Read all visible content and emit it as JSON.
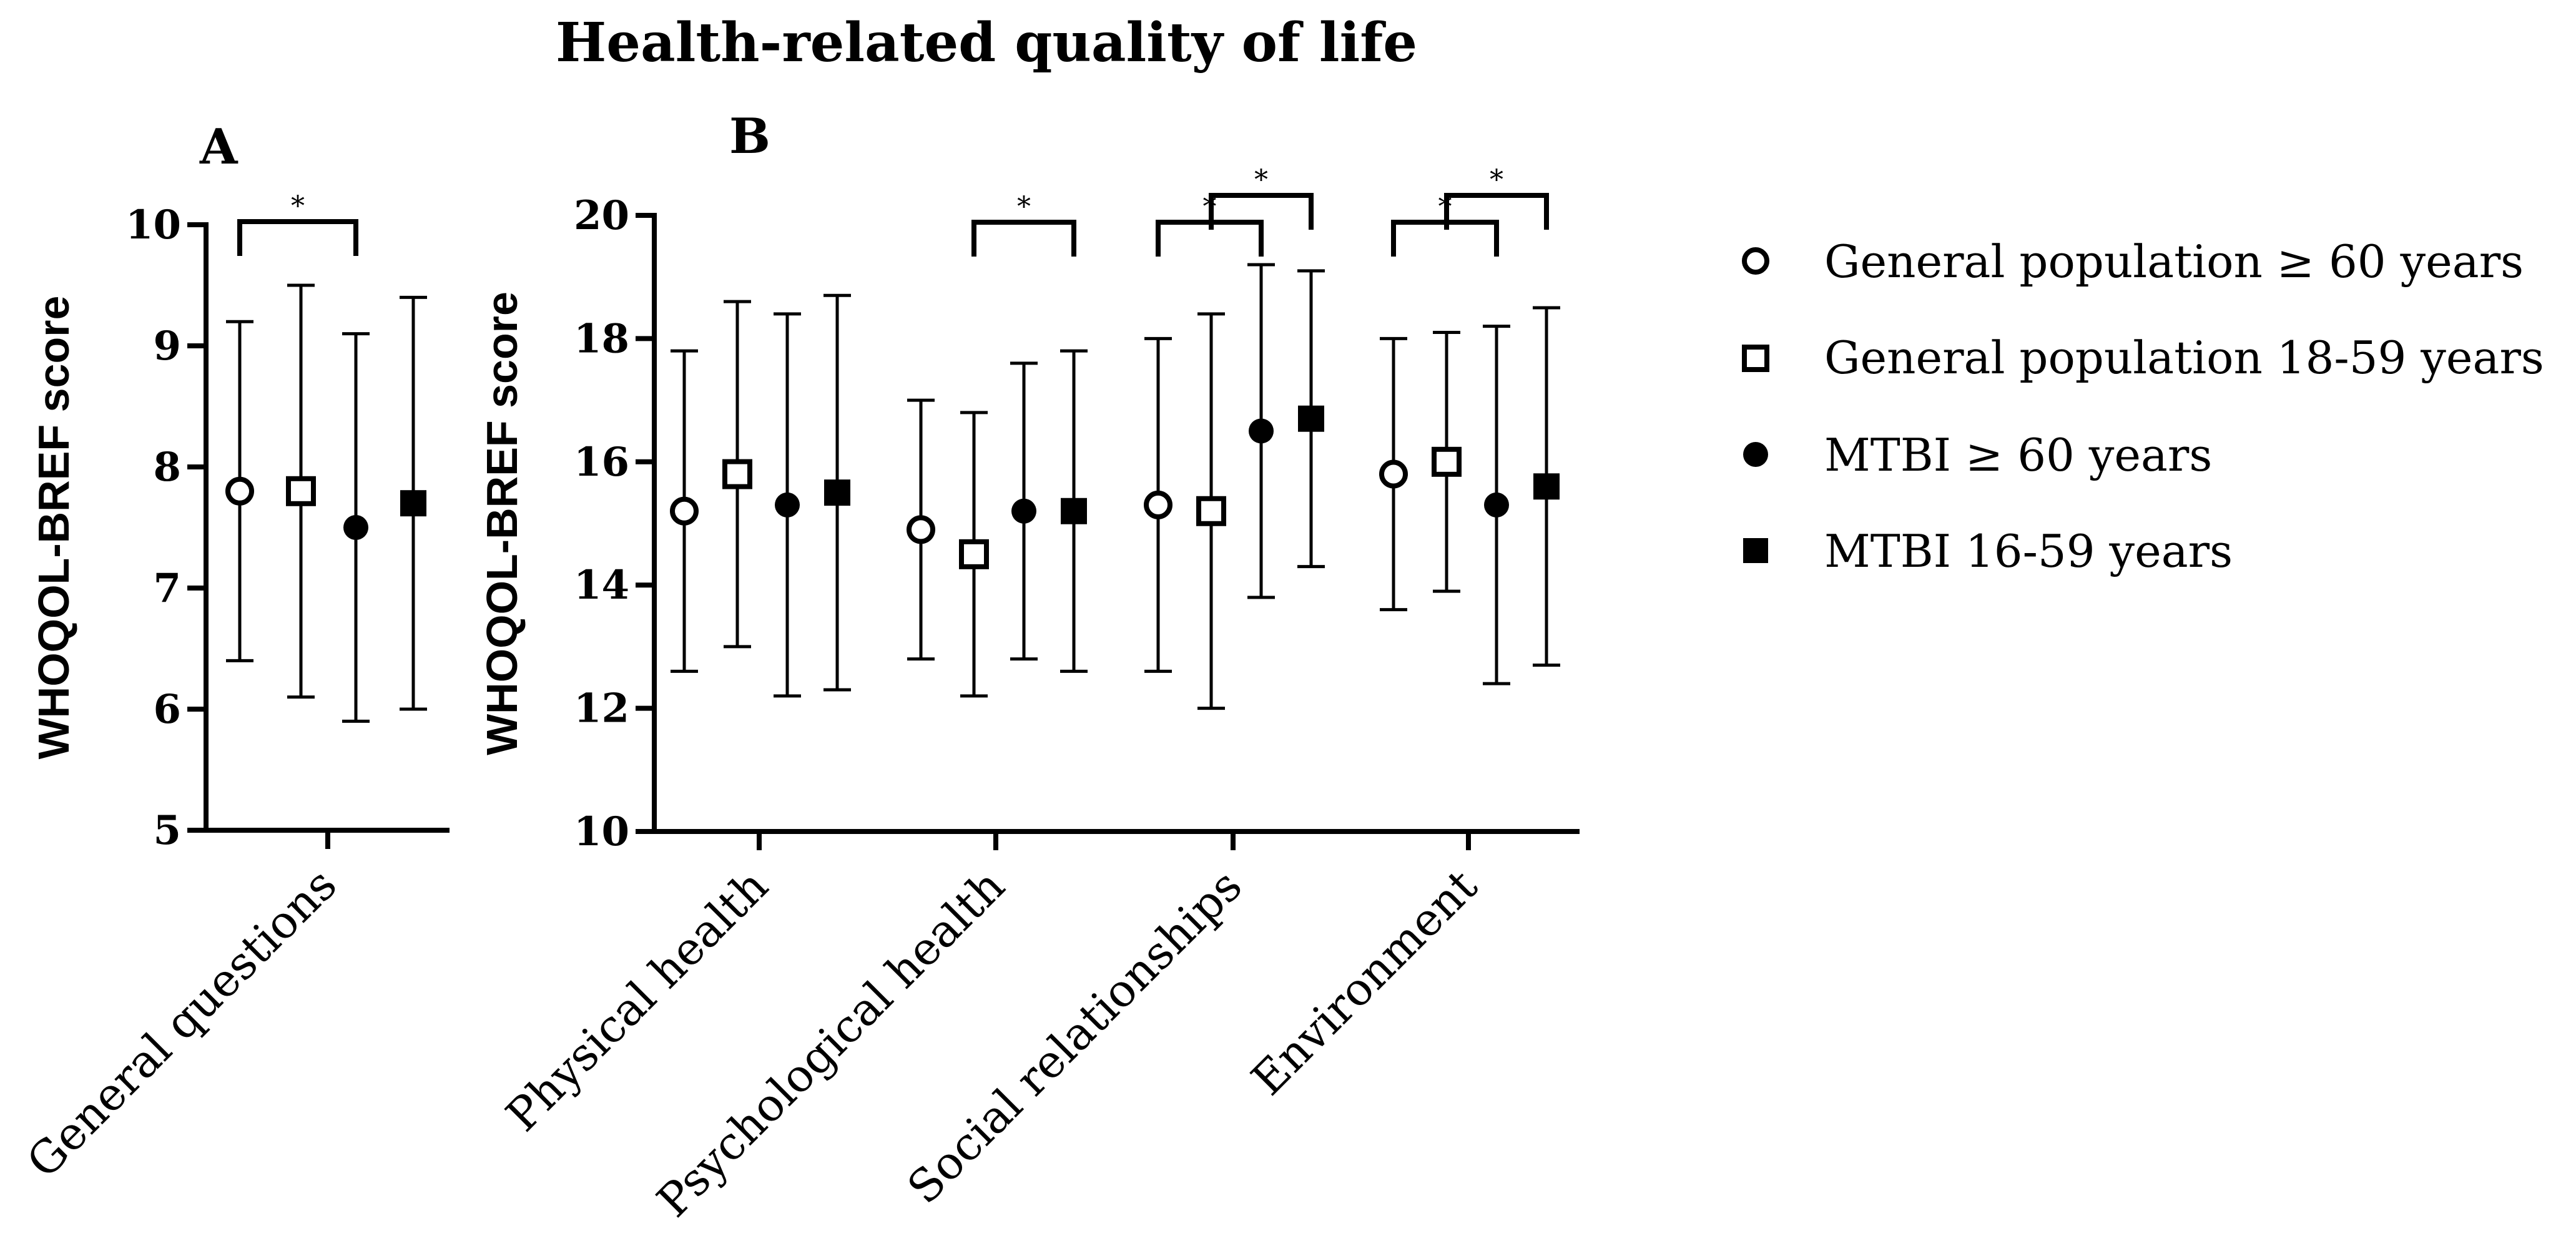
{
  "title": "Health-related quality of life",
  "legend": {
    "position": "right",
    "items": [
      {
        "label": "General population ≥ 60 years",
        "marker": "open-circle"
      },
      {
        "label": "General population 18-59 years",
        "marker": "open-square"
      },
      {
        "label": "MTBI ≥ 60 years",
        "marker": "filled-circle"
      },
      {
        "label": "MTBI 16-59 years",
        "marker": "filled-square"
      }
    ]
  },
  "chart_data": [
    {
      "panel": "A",
      "type": "scatter",
      "subtype": "mean with error bars",
      "ylabel": "WHOQOL-BREF score",
      "ylim": [
        5,
        10
      ],
      "yticks": [
        "5",
        "6",
        "7",
        "8",
        "9",
        "10"
      ],
      "categories": [
        "General questions"
      ],
      "series": [
        {
          "name": "General population ≥ 60 years",
          "mean": [
            7.8
          ],
          "lower": [
            6.4
          ],
          "upper": [
            9.2
          ]
        },
        {
          "name": "General population 18-59 years",
          "mean": [
            7.8
          ],
          "lower": [
            6.1
          ],
          "upper": [
            9.5
          ]
        },
        {
          "name": "MTBI ≥ 60 years",
          "mean": [
            7.5
          ],
          "lower": [
            5.9
          ],
          "upper": [
            9.1
          ]
        },
        {
          "name": "MTBI 16-59 years",
          "mean": [
            7.7
          ],
          "lower": [
            6.0
          ],
          "upper": [
            9.4
          ]
        }
      ],
      "significance": [
        {
          "category": 0,
          "from_series": 0,
          "to_series": 2,
          "level": 0,
          "label": "*"
        }
      ]
    },
    {
      "panel": "B",
      "type": "scatter",
      "subtype": "mean with error bars",
      "ylabel": "WHOQOL-BREF score",
      "ylim": [
        10,
        20
      ],
      "yticks": [
        "10",
        "12",
        "14",
        "16",
        "18",
        "20"
      ],
      "categories": [
        "Physical health",
        "Psychological health",
        "Social relationships",
        "Environment"
      ],
      "series": [
        {
          "name": "General population ≥ 60 years",
          "mean": [
            15.2,
            14.9,
            15.3,
            15.8
          ],
          "lower": [
            12.6,
            12.8,
            12.6,
            13.6
          ],
          "upper": [
            17.8,
            17.0,
            18.0,
            18.0
          ]
        },
        {
          "name": "General population 18-59 years",
          "mean": [
            15.8,
            14.5,
            15.2,
            16.0
          ],
          "lower": [
            13.0,
            12.2,
            12.0,
            13.9
          ],
          "upper": [
            18.6,
            16.8,
            18.4,
            18.1
          ]
        },
        {
          "name": "MTBI ≥ 60 years",
          "mean": [
            15.3,
            15.2,
            16.5,
            15.3
          ],
          "lower": [
            12.2,
            12.8,
            13.8,
            12.4
          ],
          "upper": [
            18.4,
            17.6,
            19.2,
            18.2
          ]
        },
        {
          "name": "MTBI 16-59 years",
          "mean": [
            15.5,
            15.2,
            16.7,
            15.6
          ],
          "lower": [
            12.3,
            12.6,
            14.3,
            12.7
          ],
          "upper": [
            18.7,
            17.8,
            19.1,
            18.5
          ]
        }
      ],
      "significance": [
        {
          "category": 1,
          "from_series": 1,
          "to_series": 3,
          "level": 0,
          "label": "*"
        },
        {
          "category": 2,
          "from_series": 0,
          "to_series": 2,
          "level": 0,
          "label": "*"
        },
        {
          "category": 2,
          "from_series": 1,
          "to_series": 3,
          "level": 1,
          "label": "*"
        },
        {
          "category": 3,
          "from_series": 0,
          "to_series": 2,
          "level": 0,
          "label": "*"
        },
        {
          "category": 3,
          "from_series": 1,
          "to_series": 3,
          "level": 1,
          "label": "*"
        }
      ]
    }
  ]
}
